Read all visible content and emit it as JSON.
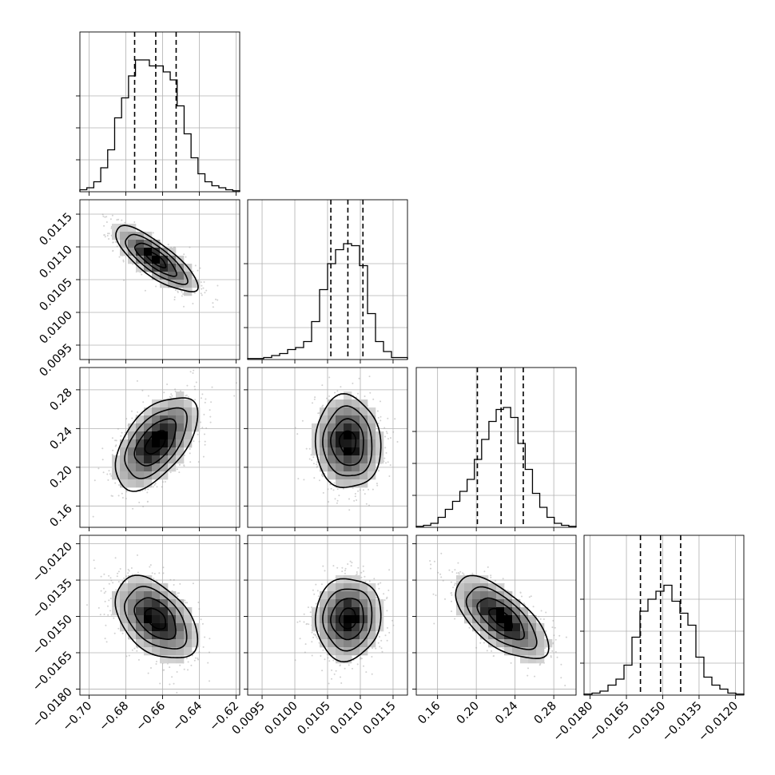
{
  "chart_data": {
    "type": "corner",
    "grid": true,
    "parameters": [
      {
        "range": [
          -0.705,
          -0.618
        ],
        "ticks": [
          -0.7,
          -0.68,
          -0.66,
          -0.64,
          -0.62
        ],
        "tick_labels": [
          "−0.70",
          "−0.68",
          "−0.66",
          "−0.64",
          "−0.62"
        ],
        "median": -0.6637,
        "quantile_16": -0.6752,
        "quantile_84": -0.6526,
        "histogram": [
          0.01,
          0.02,
          0.05,
          0.12,
          0.21,
          0.37,
          0.47,
          0.58,
          0.66,
          0.66,
          0.63,
          0.63,
          0.6,
          0.56,
          0.43,
          0.29,
          0.17,
          0.09,
          0.05,
          0.03,
          0.02,
          0.01,
          0.005
        ]
      },
      {
        "range": [
          0.00928,
          0.01172
        ],
        "ticks": [
          0.0095,
          0.01,
          0.0105,
          0.011,
          0.0115
        ],
        "tick_labels": [
          "0.0095",
          "0.0100",
          "0.0105",
          "0.0110",
          "0.0115"
        ],
        "median": 0.01081,
        "quantile_16": 0.01055,
        "quantile_84": 0.01104,
        "histogram": [
          0.005,
          0.005,
          0.01,
          0.02,
          0.03,
          0.05,
          0.06,
          0.09,
          0.19,
          0.35,
          0.48,
          0.55,
          0.58,
          0.57,
          0.47,
          0.23,
          0.09,
          0.04,
          0.01,
          0.01
        ]
      },
      {
        "range": [
          0.138,
          0.303
        ],
        "ticks": [
          0.16,
          0.2,
          0.24,
          0.28
        ],
        "tick_labels": [
          "0.16",
          "0.20",
          "0.24",
          "0.28"
        ],
        "median": 0.2256,
        "quantile_16": 0.2011,
        "quantile_84": 0.2485,
        "histogram": [
          0.005,
          0.01,
          0.02,
          0.05,
          0.09,
          0.13,
          0.18,
          0.24,
          0.34,
          0.44,
          0.53,
          0.59,
          0.6,
          0.55,
          0.42,
          0.29,
          0.17,
          0.1,
          0.05,
          0.02,
          0.01,
          0.005
        ]
      },
      {
        "range": [
          -0.01825,
          -0.01165
        ],
        "ticks": [
          -0.018,
          -0.0165,
          -0.015,
          -0.0135,
          -0.012
        ],
        "tick_labels": [
          "−0.0180",
          "−0.0165",
          "−0.0150",
          "−0.0135",
          "−0.0120"
        ],
        "median": -0.01509,
        "quantile_16": -0.01592,
        "quantile_84": -0.01426,
        "histogram": [
          0.005,
          0.01,
          0.02,
          0.05,
          0.08,
          0.15,
          0.29,
          0.42,
          0.48,
          0.52,
          0.55,
          0.47,
          0.41,
          0.35,
          0.19,
          0.09,
          0.05,
          0.03,
          0.01,
          0.005
        ]
      }
    ],
    "pairs": [
      {
        "x": 0,
        "y": 1,
        "mean": [
          -0.6637,
          0.01081
        ],
        "sd": [
          0.0112,
          0.00025
        ],
        "corr": -0.8
      },
      {
        "x": 0,
        "y": 2,
        "mean": [
          -0.6637,
          0.2256
        ],
        "sd": [
          0.0112,
          0.024
        ],
        "corr": 0.55
      },
      {
        "x": 1,
        "y": 2,
        "mean": [
          0.01081,
          0.2256
        ],
        "sd": [
          0.00025,
          0.024
        ],
        "corr": -0.05
      },
      {
        "x": 0,
        "y": 3,
        "mean": [
          -0.6637,
          -0.01509
        ],
        "sd": [
          0.0112,
          0.00085
        ],
        "corr": -0.45
      },
      {
        "x": 1,
        "y": 3,
        "mean": [
          0.01081,
          -0.01509
        ],
        "sd": [
          0.00025,
          0.00085
        ],
        "corr": 0.05
      },
      {
        "x": 2,
        "y": 3,
        "mean": [
          0.2256,
          -0.01509
        ],
        "sd": [
          0.024,
          0.00085
        ],
        "corr": -0.65
      }
    ],
    "colors": {
      "line": "#000000",
      "grid": "#b0b0b0",
      "points": "#9a9a9a",
      "density_dark": "#000000",
      "density_light": "#f2f2f2"
    }
  }
}
